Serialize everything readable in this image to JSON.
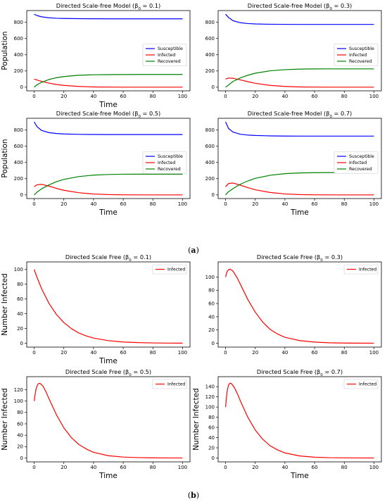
{
  "figure": {
    "caption_a": "(a)",
    "caption_b": "(b)",
    "colors": {
      "susceptible": "#0000ff",
      "infected": "#ff0000",
      "recovered": "#008000"
    }
  },
  "chart_data": [
    {
      "id": "a1",
      "type": "line",
      "title": "Directed Scale-free Model (β₀ = 0.1)",
      "xlabel": "Time",
      "ylabel": "Population",
      "xlim": [
        0,
        100
      ],
      "ylim": [
        0,
        900
      ],
      "xticks": [
        0,
        20,
        40,
        60,
        80,
        100
      ],
      "yticks": [
        0,
        200,
        400,
        600,
        800
      ],
      "legend": "center-right",
      "series": [
        {
          "name": "Susceptible",
          "color": "#0000ff",
          "x": [
            0,
            2,
            5,
            10,
            15,
            20,
            30,
            40,
            50,
            60,
            70,
            80,
            90,
            100
          ],
          "y": [
            900,
            883,
            868,
            856,
            850,
            847,
            845,
            844,
            843,
            843,
            843,
            843,
            843,
            843
          ]
        },
        {
          "name": "Infected",
          "color": "#ff0000",
          "x": [
            0,
            2,
            5,
            10,
            15,
            20,
            30,
            40,
            50,
            60,
            70,
            80,
            90,
            100
          ],
          "y": [
            100,
            88,
            72,
            50,
            33,
            22,
            9,
            3,
            1,
            0,
            0,
            0,
            0,
            0
          ]
        },
        {
          "name": "Recovered",
          "color": "#008000",
          "x": [
            0,
            2,
            5,
            10,
            15,
            20,
            30,
            40,
            50,
            60,
            70,
            80,
            90,
            100
          ],
          "y": [
            0,
            30,
            60,
            95,
            117,
            131,
            147,
            153,
            155,
            156,
            157,
            157,
            157,
            157
          ]
        }
      ]
    },
    {
      "id": "a2",
      "type": "line",
      "title": "Directed Scale-free Model (β₀ = 0.3)",
      "xlabel": "",
      "ylabel": "",
      "xlim": [
        0,
        100
      ],
      "ylim": [
        0,
        900
      ],
      "xticks": [
        0,
        20,
        40,
        60,
        80,
        100
      ],
      "yticks": [
        0,
        200,
        400,
        600,
        800
      ],
      "legend": "center-right",
      "series": [
        {
          "name": "Susceptible",
          "color": "#0000ff",
          "x": [
            0,
            2,
            5,
            10,
            15,
            20,
            30,
            40,
            50,
            60,
            70,
            80,
            90,
            100
          ],
          "y": [
            900,
            860,
            820,
            795,
            785,
            780,
            776,
            775,
            774,
            774,
            774,
            774,
            774,
            774
          ]
        },
        {
          "name": "Infected",
          "color": "#ff0000",
          "x": [
            0,
            2,
            5,
            10,
            15,
            20,
            30,
            40,
            50,
            60,
            70,
            80,
            90,
            100
          ],
          "y": [
            100,
            113,
            110,
            90,
            68,
            48,
            22,
            9,
            3,
            1,
            0,
            0,
            0,
            0
          ]
        },
        {
          "name": "Recovered",
          "color": "#008000",
          "x": [
            0,
            2,
            5,
            10,
            15,
            20,
            30,
            40,
            50,
            60,
            70,
            80,
            90,
            100
          ],
          "y": [
            0,
            27,
            70,
            115,
            147,
            172,
            202,
            216,
            223,
            225,
            226,
            226,
            226,
            226
          ]
        }
      ]
    },
    {
      "id": "a3",
      "type": "line",
      "title": "Directed Scale-free Model (β₀ = 0.5)",
      "xlabel": "Time",
      "ylabel": "Population",
      "xlim": [
        0,
        100
      ],
      "ylim": [
        0,
        900
      ],
      "xticks": [
        0,
        20,
        40,
        60,
        80,
        100
      ],
      "yticks": [
        0,
        200,
        400,
        600,
        800
      ],
      "legend": "center-right",
      "series": [
        {
          "name": "Susceptible",
          "color": "#0000ff",
          "x": [
            0,
            2,
            5,
            10,
            15,
            20,
            30,
            40,
            50,
            60,
            70,
            80,
            90,
            100
          ],
          "y": [
            900,
            840,
            795,
            768,
            757,
            752,
            747,
            745,
            744,
            744,
            744,
            744,
            744,
            744
          ]
        },
        {
          "name": "Infected",
          "color": "#ff0000",
          "x": [
            0,
            2,
            5,
            10,
            15,
            20,
            30,
            40,
            50,
            60,
            70,
            80,
            90,
            100
          ],
          "y": [
            100,
            125,
            130,
            108,
            80,
            57,
            27,
            11,
            4,
            1,
            0,
            0,
            0,
            0
          ]
        },
        {
          "name": "Recovered",
          "color": "#008000",
          "x": [
            0,
            2,
            5,
            10,
            15,
            20,
            30,
            40,
            50,
            60,
            70,
            80,
            90,
            100
          ],
          "y": [
            0,
            35,
            75,
            124,
            163,
            191,
            226,
            244,
            252,
            255,
            256,
            256,
            256,
            256
          ]
        }
      ]
    },
    {
      "id": "a4",
      "type": "line",
      "title": "Directed Scale-free Model (β₀ = 0.7)",
      "xlabel": "Time",
      "ylabel": "",
      "xlim": [
        0,
        100
      ],
      "ylim": [
        0,
        900
      ],
      "xticks": [
        0,
        20,
        40,
        60,
        80,
        100
      ],
      "yticks": [
        0,
        200,
        400,
        600,
        800
      ],
      "legend": "center-right",
      "series": [
        {
          "name": "Susceptible",
          "color": "#0000ff",
          "x": [
            0,
            2,
            5,
            10,
            15,
            20,
            30,
            40,
            50,
            60,
            70,
            80,
            90,
            100
          ],
          "y": [
            900,
            820,
            775,
            748,
            738,
            733,
            728,
            726,
            725,
            725,
            725,
            725,
            725,
            725
          ]
        },
        {
          "name": "Infected",
          "color": "#ff0000",
          "x": [
            0,
            2,
            5,
            10,
            15,
            20,
            30,
            40,
            50,
            60,
            70,
            80,
            90,
            100
          ],
          "y": [
            100,
            140,
            147,
            120,
            90,
            63,
            30,
            12,
            4,
            1,
            0,
            0,
            0,
            0
          ]
        },
        {
          "name": "Recovered",
          "color": "#008000",
          "x": [
            0,
            2,
            5,
            10,
            15,
            20,
            30,
            40,
            50,
            60,
            70,
            80,
            90,
            100
          ],
          "y": [
            0,
            40,
            78,
            132,
            172,
            204,
            242,
            262,
            271,
            274,
            275,
            275,
            275,
            275
          ]
        }
      ]
    },
    {
      "id": "b1",
      "type": "line",
      "title": "Directed Scale Free (β₀ = 0.1)",
      "xlabel": "Time",
      "ylabel": "Number Infected",
      "xlim": [
        0,
        100
      ],
      "ylim": [
        0,
        105
      ],
      "xticks": [
        0,
        20,
        40,
        60,
        80,
        100
      ],
      "yticks": [
        0,
        20,
        40,
        60,
        80,
        100
      ],
      "legend": "upper-right",
      "series": [
        {
          "name": "Infected",
          "color": "#ff0000",
          "x": [
            0,
            2,
            5,
            10,
            15,
            20,
            25,
            30,
            35,
            40,
            50,
            60,
            70,
            80,
            90,
            100
          ],
          "y": [
            100,
            89,
            74,
            54,
            39,
            28,
            20,
            14,
            10,
            7,
            3.5,
            1.7,
            0.8,
            0.4,
            0.2,
            0.1
          ]
        }
      ]
    },
    {
      "id": "b2",
      "type": "line",
      "title": "Directed Scale Free (β₀ = 0.3)",
      "xlabel": "",
      "ylabel": "",
      "xlim": [
        0,
        100
      ],
      "ylim": [
        0,
        117
      ],
      "xticks": [
        0,
        20,
        40,
        60,
        80,
        100
      ],
      "yticks": [
        0,
        20,
        40,
        60,
        80,
        100
      ],
      "legend": "upper-right",
      "series": [
        {
          "name": "Infected",
          "color": "#ff0000",
          "x": [
            0,
            1,
            2,
            3,
            5,
            8,
            10,
            15,
            20,
            25,
            30,
            35,
            40,
            50,
            60,
            70,
            80,
            90,
            100
          ],
          "y": [
            100,
            108,
            111,
            112,
            109,
            98,
            89,
            66,
            47,
            32,
            21,
            14,
            9,
            4,
            1.7,
            0.7,
            0.3,
            0.1,
            0.05
          ]
        }
      ]
    },
    {
      "id": "b3",
      "type": "line",
      "title": "Directed Scale Free (β₀ = 0.5)",
      "xlabel": "Time",
      "ylabel": "Number Infected",
      "xlim": [
        0,
        100
      ],
      "ylim": [
        0,
        136
      ],
      "xticks": [
        0,
        20,
        40,
        60,
        80,
        100
      ],
      "yticks": [
        0,
        20,
        40,
        60,
        80,
        100,
        120
      ],
      "legend": "upper-right",
      "series": [
        {
          "name": "Infected",
          "color": "#ff0000",
          "x": [
            0,
            1,
            2,
            3,
            4,
            6,
            8,
            10,
            15,
            20,
            25,
            30,
            35,
            40,
            50,
            60,
            70,
            80,
            90,
            100
          ],
          "y": [
            100,
            118,
            127,
            131,
            131,
            126,
            116,
            104,
            76,
            53,
            36,
            24,
            16,
            10,
            4,
            1.6,
            0.7,
            0.3,
            0.1,
            0.05
          ]
        }
      ]
    },
    {
      "id": "b4",
      "type": "line",
      "title": "Directed Scale Free (β₀ = 0.7)",
      "xlabel": "Time",
      "ylabel": "Number Infected",
      "xlim": [
        0,
        100
      ],
      "ylim": [
        0,
        152
      ],
      "xticks": [
        0,
        20,
        40,
        60,
        80,
        100
      ],
      "yticks": [
        0,
        20,
        40,
        60,
        80,
        100,
        120,
        140
      ],
      "legend": "upper-right",
      "series": [
        {
          "name": "Infected",
          "color": "#ff0000",
          "x": [
            0,
            1,
            2,
            3,
            4,
            6,
            8,
            10,
            15,
            20,
            25,
            30,
            35,
            40,
            50,
            60,
            70,
            80,
            90,
            100
          ],
          "y": [
            100,
            130,
            143,
            147,
            146,
            138,
            126,
            112,
            80,
            55,
            37,
            24,
            16,
            10,
            4,
            1.6,
            0.6,
            0.25,
            0.1,
            0.04
          ]
        }
      ]
    }
  ]
}
